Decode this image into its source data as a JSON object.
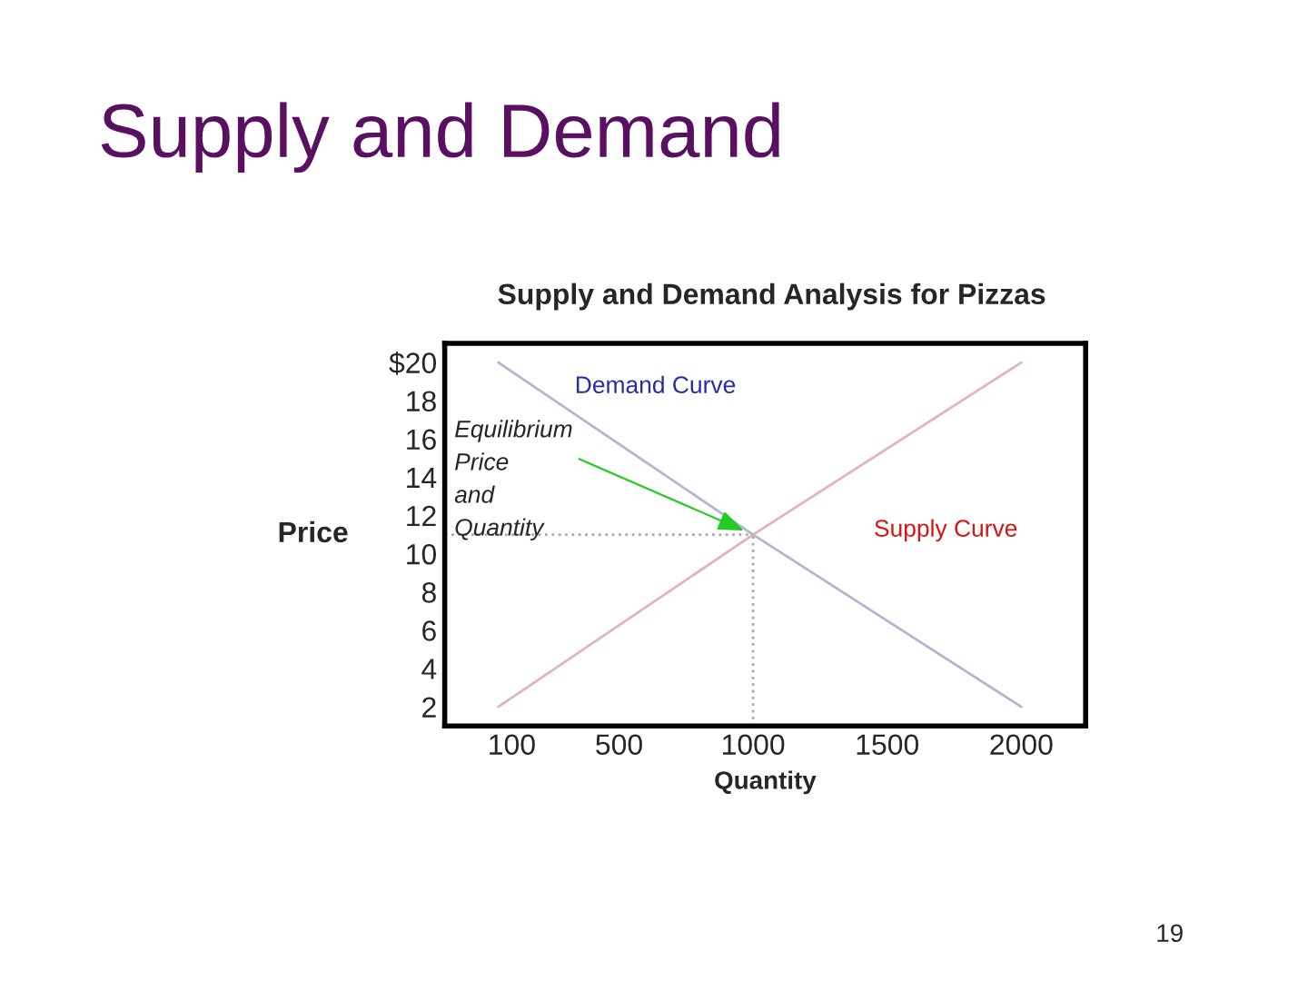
{
  "chart_data": {
    "type": "line",
    "title": "Supply and Demand",
    "subtitle": "Supply and Demand Analysis for Pizzas",
    "xlabel": "Quantity",
    "ylabel": "Price",
    "x": [
      50,
      1000,
      2000
    ],
    "series": [
      {
        "name": "Demand Curve",
        "color": "#b4b4d2",
        "values": [
          20,
          11,
          2
        ]
      },
      {
        "name": "Supply Curve",
        "color": "#e2b4b8",
        "values": [
          2,
          11,
          20
        ]
      }
    ],
    "xlim": [
      -150,
      2240
    ],
    "xticks": [
      100,
      500,
      1000,
      1500,
      2000
    ],
    "ylim": [
      1,
      21
    ],
    "yticks": [
      2,
      4,
      6,
      8,
      10,
      12,
      14,
      16,
      18,
      {
        "value": 20,
        "label": "$20"
      }
    ],
    "ref_lines": [
      {
        "axis": "y",
        "value": 11,
        "label": null,
        "color": "#aaaaaa",
        "line_style": "dotted"
      },
      {
        "axis": "x",
        "value": 1000,
        "label": null,
        "color": "#aaaaaa",
        "line_style": "dotted"
      }
    ],
    "annotations": [
      {
        "text": "Equilibrium\nPrice\nand\nQuantity",
        "x": 1000,
        "y": 11
      },
      "19"
    ],
    "grid": false,
    "legend": false,
    "marker": "none",
    "line_style": "solid"
  }
}
